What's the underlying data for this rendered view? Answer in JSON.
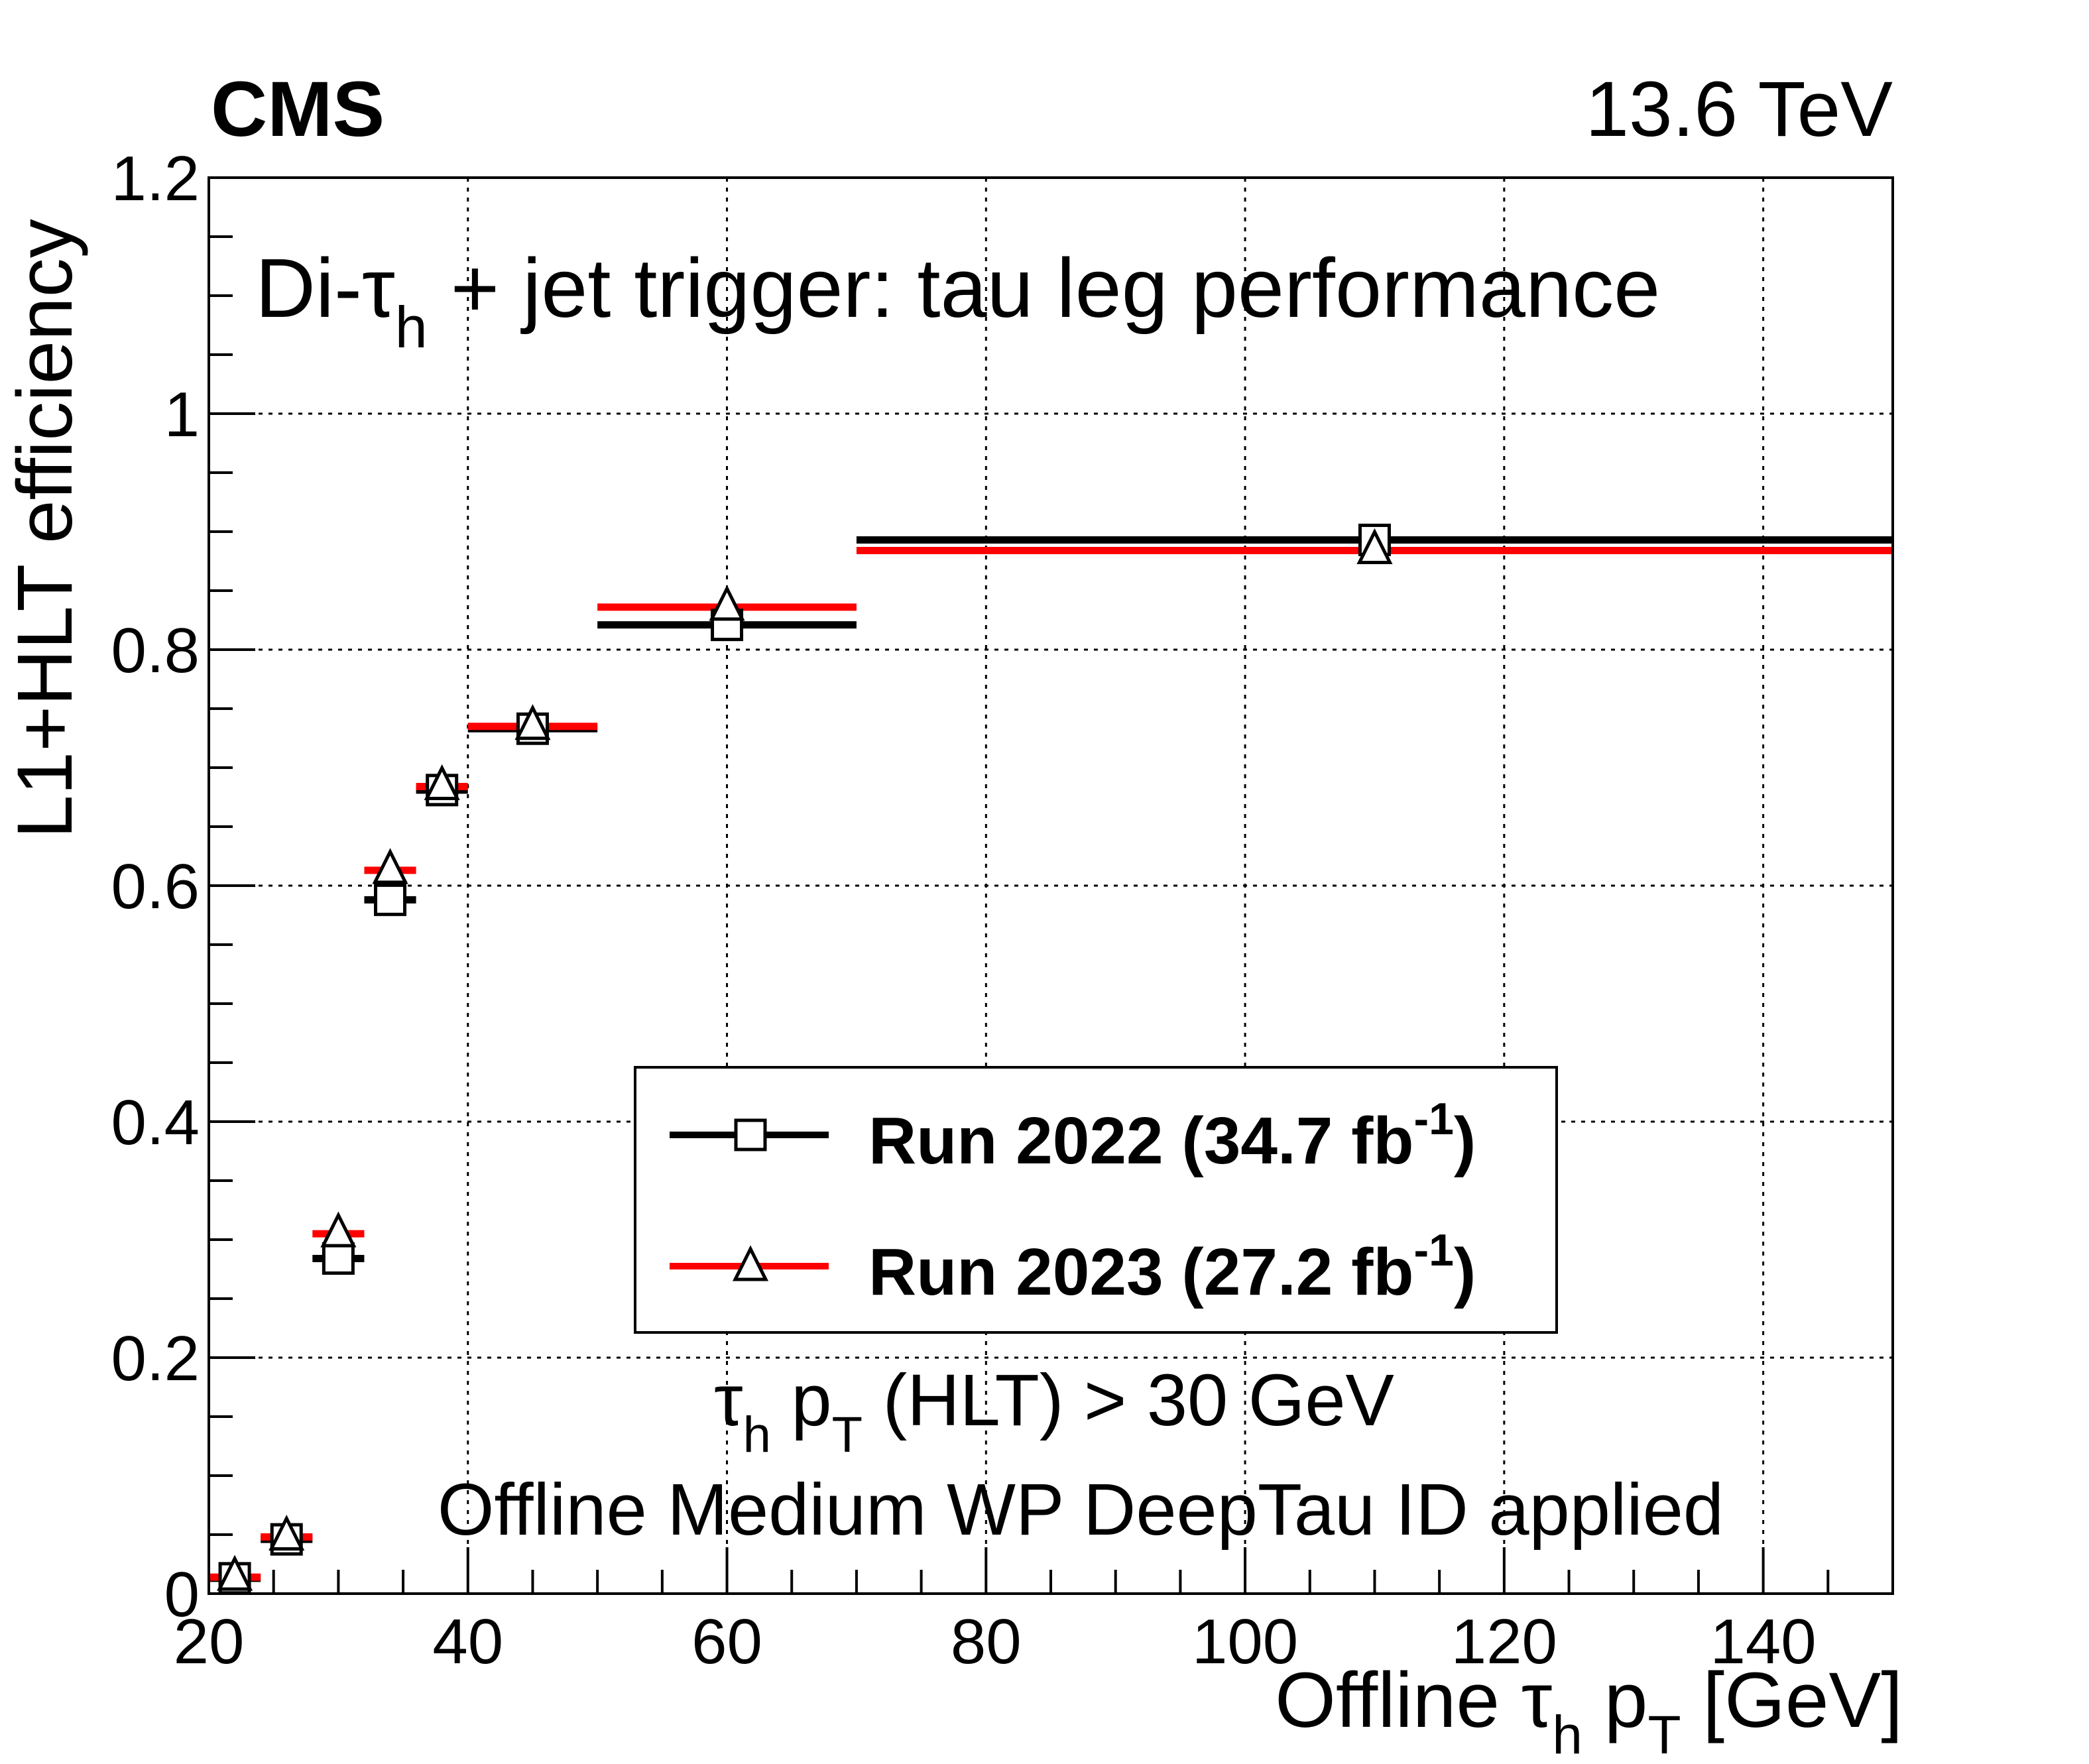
{
  "header": {
    "experiment": "CMS",
    "energy": "13.6 TeV"
  },
  "annotations": {
    "title_prefix": "Di-τ",
    "title_sub": "h",
    "title_suffix": " + jet trigger: tau leg performance",
    "cut_tau": "τ",
    "cut_tau_sub": "h",
    "cut_p": " p",
    "cut_p_sub": "T",
    "cut_suffix": " (HLT) > 30 GeV",
    "id_line": "Offline Medium WP DeepTau ID applied"
  },
  "axes": {
    "ylabel": "L1+HLT efficiency",
    "xlabel_prefix": "Offline τ",
    "xlabel_sub1": "h",
    "xlabel_mid": " p",
    "xlabel_sub2": "T",
    "xlabel_suffix": " [GeV]"
  },
  "legend": {
    "entries": [
      {
        "label": "Run 2022 (34.7 fb",
        "sup": "-1",
        "close": ")"
      },
      {
        "label": "Run 2023 (27.2 fb",
        "sup": "-1",
        "close": ")"
      }
    ]
  },
  "colors": {
    "run2022": "#000000",
    "run2023": "#ff0000",
    "grid": "#000000"
  },
  "chart_data": {
    "type": "scatter",
    "title": "Di-τh + jet trigger: tau leg performance",
    "xlabel": "Offline τh pT [GeV]",
    "ylabel": "L1+HLT efficiency",
    "xlim": [
      20,
      150
    ],
    "ylim": [
      0,
      1.2
    ],
    "x_ticks": [
      20,
      40,
      60,
      80,
      100,
      120,
      140
    ],
    "y_ticks": [
      0,
      0.2,
      0.4,
      0.6,
      0.8,
      1,
      1.2
    ],
    "x_tick_labels": [
      "20",
      "40",
      "60",
      "80",
      "100",
      "120",
      "140"
    ],
    "y_tick_labels": [
      "0",
      "0.2",
      "0.4",
      "0.6",
      "0.8",
      "1",
      "1.2"
    ],
    "grid": true,
    "legend_position": "center-right",
    "series": [
      {
        "name": "Run 2022 (34.7 fb-1)",
        "marker": "open-square",
        "points": [
          {
            "x": 22,
            "xlo": 20,
            "xhi": 24,
            "y": 0.013
          },
          {
            "x": 26,
            "xlo": 24,
            "xhi": 28,
            "y": 0.046
          },
          {
            "x": 30,
            "xlo": 28,
            "xhi": 32,
            "y": 0.284
          },
          {
            "x": 34,
            "xlo": 32,
            "xhi": 36,
            "y": 0.588
          },
          {
            "x": 38,
            "xlo": 36,
            "xhi": 40,
            "y": 0.681
          },
          {
            "x": 45,
            "xlo": 40,
            "xhi": 50,
            "y": 0.733
          },
          {
            "x": 60,
            "xlo": 50,
            "xhi": 70,
            "y": 0.821
          },
          {
            "x": 110,
            "xlo": 70,
            "xhi": 150,
            "y": 0.893
          }
        ]
      },
      {
        "name": "Run 2023 (27.2 fb-1)",
        "marker": "open-triangle",
        "points": [
          {
            "x": 22,
            "xlo": 20,
            "xhi": 24,
            "y": 0.014
          },
          {
            "x": 26,
            "xlo": 24,
            "xhi": 28,
            "y": 0.048
          },
          {
            "x": 30,
            "xlo": 28,
            "xhi": 32,
            "y": 0.305
          },
          {
            "x": 34,
            "xlo": 32,
            "xhi": 36,
            "y": 0.613
          },
          {
            "x": 38,
            "xlo": 36,
            "xhi": 40,
            "y": 0.684
          },
          {
            "x": 45,
            "xlo": 40,
            "xhi": 50,
            "y": 0.735
          },
          {
            "x": 60,
            "xlo": 50,
            "xhi": 70,
            "y": 0.836
          },
          {
            "x": 110,
            "xlo": 70,
            "xhi": 150,
            "y": 0.884
          }
        ]
      }
    ]
  }
}
